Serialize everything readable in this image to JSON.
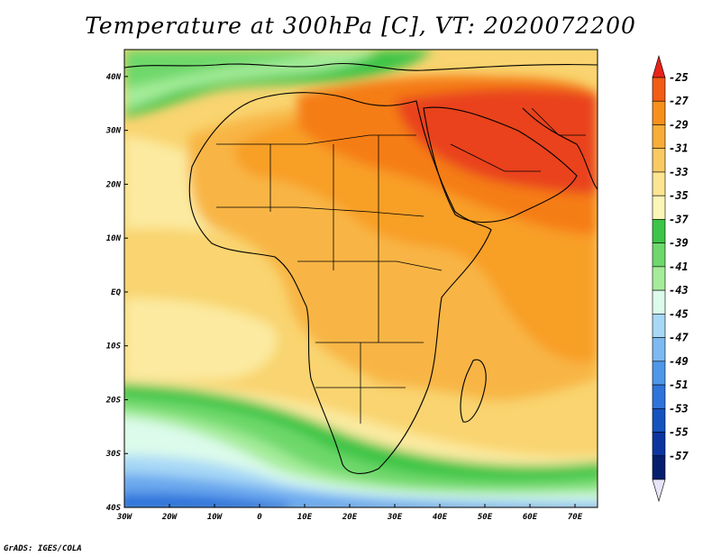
{
  "title": "Temperature at 300hPa [C], VT: 2020072200",
  "footer": "GrADS: IGES/COLA",
  "map": {
    "lon_range": [
      -30,
      75
    ],
    "lat_range": [
      -40,
      45
    ],
    "lon_ticks": [
      "30W",
      "20W",
      "10W",
      "0",
      "10E",
      "20E",
      "30E",
      "40E",
      "50E",
      "60E",
      "70E"
    ],
    "lat_ticks": [
      "40N",
      "30N",
      "20N",
      "10N",
      "EQ",
      "10S",
      "20S",
      "30S",
      "40S"
    ]
  },
  "colorbar": {
    "labels": [
      "-25",
      "-27",
      "-29",
      "-31",
      "-33",
      "-35",
      "-37",
      "-39",
      "-41",
      "-43",
      "-45",
      "-47",
      "-49",
      "-51",
      "-53",
      "-55",
      "-57"
    ],
    "colors": [
      "#e9231a",
      "#f25c15",
      "#f7901a",
      "#f8ad38",
      "#f9ca63",
      "#fde592",
      "#fbf5b8",
      "#3cc546",
      "#6ed86b",
      "#a5ec9a",
      "#dcfbeb",
      "#a7d8f6",
      "#7cbaf1",
      "#4e97e9",
      "#2f74db",
      "#1553bf",
      "#0c35a0",
      "#061e6e",
      "#e8e4fa"
    ]
  },
  "fields": {
    "colors": {
      "hot": "#e9431c",
      "warm": "#f57d16",
      "orange": "#f89f28",
      "light_orange": "#f8b544",
      "yellow": "#f9d470",
      "pale": "#fbeaa0",
      "green": "#3cc546",
      "mid_green": "#6ed86b",
      "light_green": "#a5ec9a",
      "cyan": "#dcfbeb",
      "light_blue": "#a7d8f6",
      "blue": "#6aa8ee",
      "dark_blue": "#2f74db"
    }
  }
}
